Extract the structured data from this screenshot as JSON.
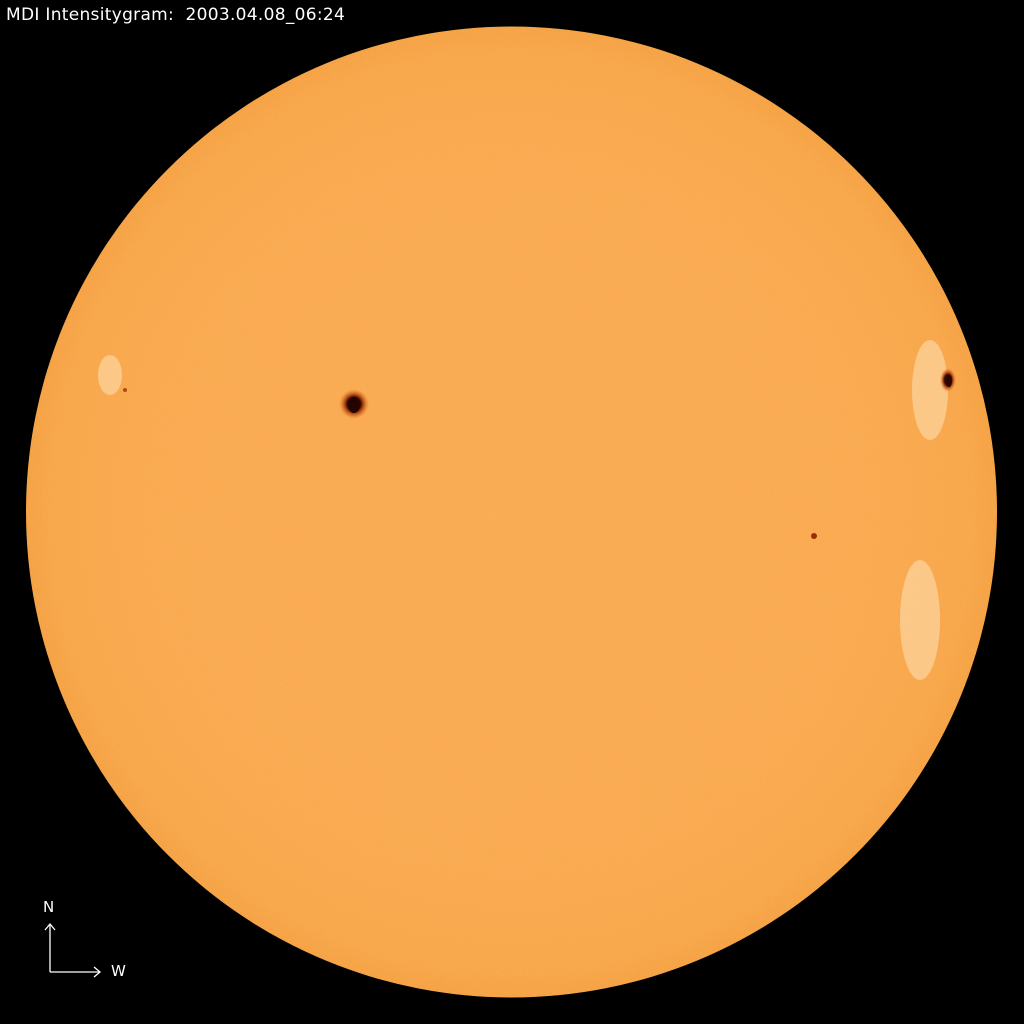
{
  "title": {
    "instrument": "MDI Intensitygram:",
    "timestamp": "2003.04.08_06:24"
  },
  "compass": {
    "north_label": "N",
    "west_label": "W"
  },
  "colors": {
    "background": "#000000",
    "disk": "#fba94f",
    "sunspot_umbra": "#3a0a00",
    "sunspot_penumbra": "#a8400c",
    "text": "#ffffff"
  }
}
